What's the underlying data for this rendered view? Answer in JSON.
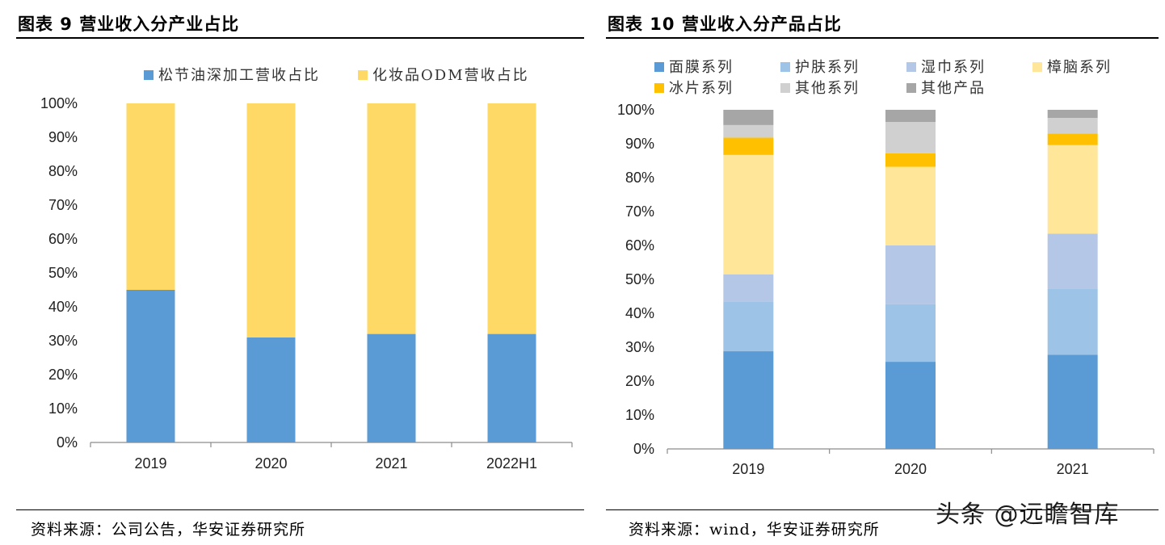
{
  "left_panel": {
    "title": "图表 9  营业收入分产业占比",
    "source": "资料来源：公司公告，华安证券研究所"
  },
  "right_panel": {
    "title": "图表 10  营业收入分产品占比",
    "source": "资料来源：wind，华安证券研究所"
  },
  "watermark": "头条 @远瞻智库",
  "chart_data": [
    {
      "type": "bar",
      "stacked": true,
      "categories": [
        "2019",
        "2020",
        "2021",
        "2022H1"
      ],
      "ylim": [
        0,
        100
      ],
      "yticks": [
        "0%",
        "10%",
        "20%",
        "30%",
        "40%",
        "50%",
        "60%",
        "70%",
        "80%",
        "90%",
        "100%"
      ],
      "legend_position": "top",
      "grid": false,
      "series": [
        {
          "name": "松节油深加工营收占比",
          "color": "#5b9bd5",
          "values": [
            45,
            31,
            32,
            32
          ]
        },
        {
          "name": "化妆品ODM营收占比",
          "color": "#ffd966",
          "values": [
            55,
            69,
            68,
            68
          ]
        }
      ]
    },
    {
      "type": "bar",
      "stacked": true,
      "categories": [
        "2019",
        "2020",
        "2021"
      ],
      "ylim": [
        0,
        100
      ],
      "yticks": [
        "0%",
        "10%",
        "20%",
        "30%",
        "40%",
        "50%",
        "60%",
        "70%",
        "80%",
        "90%",
        "100%"
      ],
      "legend_position": "top",
      "grid": false,
      "series": [
        {
          "name": "面膜系列",
          "color": "#5b9bd5",
          "values": [
            28.8,
            25.7,
            27.8
          ]
        },
        {
          "name": "护肤系列",
          "color": "#9dc3e6",
          "values": [
            14.7,
            17,
            19.5
          ]
        },
        {
          "name": "湿巾系列",
          "color": "#b4c7e7",
          "values": [
            8,
            17.3,
            16.2
          ]
        },
        {
          "name": "樟脑系列",
          "color": "#ffe699",
          "values": [
            35.2,
            23.2,
            26.1
          ]
        },
        {
          "name": "冰片系列",
          "color": "#ffc000",
          "values": [
            5.1,
            4,
            3.4
          ]
        },
        {
          "name": "其他系列",
          "color": "#d0d0d0",
          "values": [
            3.7,
            9.2,
            4.6
          ]
        },
        {
          "name": "其他产品",
          "color": "#a6a6a6",
          "values": [
            4.5,
            3.6,
            2.4
          ]
        }
      ]
    }
  ]
}
